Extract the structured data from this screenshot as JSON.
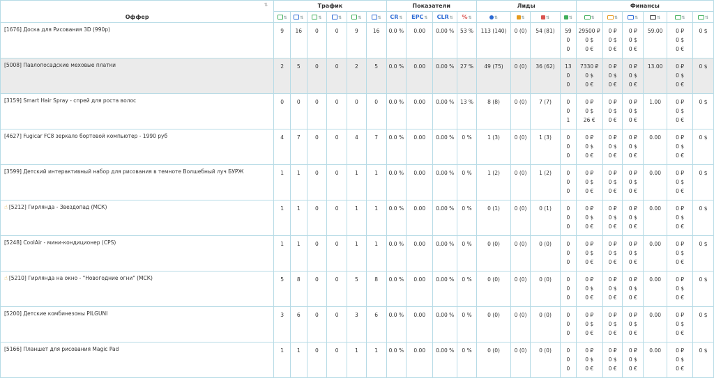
{
  "groups": {
    "offer": "Оффер",
    "traffic": "Трафик",
    "indicators": "Показатели",
    "leads": "Лиды",
    "finance": "Финансы"
  },
  "columns": {
    "traffic": [
      {
        "icon": "cursor-green-icon",
        "color": "#3fae5a"
      },
      {
        "icon": "cursor-blue-icon",
        "color": "#2a6ad4"
      },
      {
        "icon": "copy-green-icon",
        "color": "#3fae5a"
      },
      {
        "icon": "copy-blue-icon",
        "color": "#2a6ad4"
      },
      {
        "icon": "window-green-icon",
        "color": "#3fae5a"
      },
      {
        "icon": "window-blue-icon",
        "color": "#2a6ad4"
      }
    ],
    "indicators": [
      {
        "label": "CR",
        "color": "#2a6ad4"
      },
      {
        "label": "EPC",
        "color": "#2a6ad4"
      },
      {
        "label": "CLR",
        "color": "#2a6ad4"
      },
      {
        "label": "%",
        "color": "#d9534f"
      }
    ],
    "leads": [
      {
        "icon": "dot-blue-icon",
        "color": "#2a6ad4"
      },
      {
        "icon": "refresh-orange-icon",
        "color": "#e59a1c"
      },
      {
        "icon": "thumbs-down-red-icon",
        "color": "#d9534f"
      },
      {
        "icon": "thumbs-up-green-icon",
        "color": "#3fae5a"
      }
    ],
    "finance": [
      {
        "icon": "money-green-icon",
        "color": "#3fae5a"
      },
      {
        "icon": "money-orange-icon",
        "color": "#e59a1c"
      },
      {
        "icon": "money-blue-icon",
        "color": "#2a6ad4"
      },
      {
        "icon": "bracket-dark-icon",
        "color": "#333"
      },
      {
        "icon": "user-money-green-icon",
        "color": "#3fae5a"
      },
      {
        "icon": "plus-money-green-icon",
        "color": "#3fae5a"
      }
    ]
  },
  "rows": [
    {
      "hand": false,
      "shaded": false,
      "name": "[1676] Доска для Рисования 3D (990р)",
      "traffic": [
        "9",
        "16",
        "0",
        "0",
        "9",
        "16"
      ],
      "cr": "0.0 %",
      "epc": "0.00",
      "clr": "0.00 %",
      "pct": "53 %",
      "lead1": "113 (140)",
      "lead2": "0 (0)",
      "lead3": "54 (81)",
      "lead4": [
        "59",
        "0",
        "0"
      ],
      "fin1": [
        "29500 ₽",
        "0 $",
        "0 €"
      ],
      "fin2": [
        "0 ₽",
        "0 $",
        "0 €"
      ],
      "fin3": [
        "0 ₽",
        "0 $",
        "0 €"
      ],
      "fin4": "59.00",
      "fin5": [
        "0 ₽",
        "0 $",
        "0 €"
      ],
      "fin6": "0 $"
    },
    {
      "hand": false,
      "shaded": true,
      "name": "[5008] Павлопосадские меховые платки",
      "traffic": [
        "2",
        "5",
        "0",
        "0",
        "2",
        "5"
      ],
      "cr": "0.0 %",
      "epc": "0.00",
      "clr": "0.00 %",
      "pct": "27 %",
      "lead1": "49 (75)",
      "lead2": "0 (0)",
      "lead3": "36 (62)",
      "lead4": [
        "13",
        "0",
        "0"
      ],
      "fin1": [
        "7330 ₽",
        "0 $",
        "0 €"
      ],
      "fin2": [
        "0 ₽",
        "0 $",
        "0 €"
      ],
      "fin3": [
        "0 ₽",
        "0 $",
        "0 €"
      ],
      "fin4": "13.00",
      "fin5": [
        "0 ₽",
        "0 $",
        "0 €"
      ],
      "fin6": "0 $"
    },
    {
      "hand": false,
      "shaded": false,
      "name": "[3159] Smart Hair Spray - спрей для роста волос",
      "traffic": [
        "0",
        "0",
        "0",
        "0",
        "0",
        "0"
      ],
      "cr": "0.0 %",
      "epc": "0.00",
      "clr": "0.00 %",
      "pct": "13 %",
      "lead1": "8 (8)",
      "lead2": "0 (0)",
      "lead3": "7 (7)",
      "lead4": [
        "0",
        "0",
        "1"
      ],
      "fin1": [
        "0 ₽",
        "0 $",
        "26 €"
      ],
      "fin2": [
        "0 ₽",
        "0 $",
        "0 €"
      ],
      "fin3": [
        "0 ₽",
        "0 $",
        "0 €"
      ],
      "fin4": "1.00",
      "fin5": [
        "0 ₽",
        "0 $",
        "0 €"
      ],
      "fin6": "0 $"
    },
    {
      "hand": false,
      "shaded": false,
      "name": "[4627] Fugicar FC8 зеркало бортовой компьютер - 1990 руб",
      "traffic": [
        "4",
        "7",
        "0",
        "0",
        "4",
        "7"
      ],
      "cr": "0.0 %",
      "epc": "0.00",
      "clr": "0.00 %",
      "pct": "0 %",
      "lead1": "1 (3)",
      "lead2": "0 (0)",
      "lead3": "1 (3)",
      "lead4": [
        "0",
        "0",
        "0"
      ],
      "fin1": [
        "0 ₽",
        "0 $",
        "0 €"
      ],
      "fin2": [
        "0 ₽",
        "0 $",
        "0 €"
      ],
      "fin3": [
        "0 ₽",
        "0 $",
        "0 €"
      ],
      "fin4": "0.00",
      "fin5": [
        "0 ₽",
        "0 $",
        "0 €"
      ],
      "fin6": "0 $"
    },
    {
      "hand": false,
      "shaded": false,
      "name": "[3599] Детский интерактивный набор для рисования в темноте Волшебный луч БУРЖ",
      "traffic": [
        "1",
        "1",
        "0",
        "0",
        "1",
        "1"
      ],
      "cr": "0.0 %",
      "epc": "0.00",
      "clr": "0.00 %",
      "pct": "0 %",
      "lead1": "1 (2)",
      "lead2": "0 (0)",
      "lead3": "1 (2)",
      "lead4": [
        "0",
        "0",
        "0"
      ],
      "fin1": [
        "0 ₽",
        "0 $",
        "0 €"
      ],
      "fin2": [
        "0 ₽",
        "0 $",
        "0 €"
      ],
      "fin3": [
        "0 ₽",
        "0 $",
        "0 €"
      ],
      "fin4": "0.00",
      "fin5": [
        "0 ₽",
        "0 $",
        "0 €"
      ],
      "fin6": "0 $"
    },
    {
      "hand": true,
      "shaded": false,
      "name": "[5212] Гирлянда - Звездопад (МСК)",
      "traffic": [
        "1",
        "1",
        "0",
        "0",
        "1",
        "1"
      ],
      "cr": "0.0 %",
      "epc": "0.00",
      "clr": "0.00 %",
      "pct": "0 %",
      "lead1": "0 (1)",
      "lead2": "0 (0)",
      "lead3": "0 (1)",
      "lead4": [
        "0",
        "0",
        "0"
      ],
      "fin1": [
        "0 ₽",
        "0 $",
        "0 €"
      ],
      "fin2": [
        "0 ₽",
        "0 $",
        "0 €"
      ],
      "fin3": [
        "0 ₽",
        "0 $",
        "0 €"
      ],
      "fin4": "0.00",
      "fin5": [
        "0 ₽",
        "0 $",
        "0 €"
      ],
      "fin6": "0 $"
    },
    {
      "hand": false,
      "shaded": false,
      "name": "[5248] CoolAir - мини-кондиционер (CPS)",
      "traffic": [
        "1",
        "1",
        "0",
        "0",
        "1",
        "1"
      ],
      "cr": "0.0 %",
      "epc": "0.00",
      "clr": "0.00 %",
      "pct": "0 %",
      "lead1": "0 (0)",
      "lead2": "0 (0)",
      "lead3": "0 (0)",
      "lead4": [
        "0",
        "0",
        "0"
      ],
      "fin1": [
        "0 ₽",
        "0 $",
        "0 €"
      ],
      "fin2": [
        "0 ₽",
        "0 $",
        "0 €"
      ],
      "fin3": [
        "0 ₽",
        "0 $",
        "0 €"
      ],
      "fin4": "0.00",
      "fin5": [
        "0 ₽",
        "0 $",
        "0 €"
      ],
      "fin6": "0 $"
    },
    {
      "hand": true,
      "shaded": false,
      "name": "[5210] Гирлянда на окно - \"Новогодние огни\" (МСК)",
      "traffic": [
        "5",
        "8",
        "0",
        "0",
        "5",
        "8"
      ],
      "cr": "0.0 %",
      "epc": "0.00",
      "clr": "0.00 %",
      "pct": "0 %",
      "lead1": "0 (0)",
      "lead2": "0 (0)",
      "lead3": "0 (0)",
      "lead4": [
        "0",
        "0",
        "0"
      ],
      "fin1": [
        "0 ₽",
        "0 $",
        "0 €"
      ],
      "fin2": [
        "0 ₽",
        "0 $",
        "0 €"
      ],
      "fin3": [
        "0 ₽",
        "0 $",
        "0 €"
      ],
      "fin4": "0.00",
      "fin5": [
        "0 ₽",
        "0 $",
        "0 €"
      ],
      "fin6": "0 $"
    },
    {
      "hand": false,
      "shaded": false,
      "name": "[5200] Детские комбинезоны PILGUNI",
      "traffic": [
        "3",
        "6",
        "0",
        "0",
        "3",
        "6"
      ],
      "cr": "0.0 %",
      "epc": "0.00",
      "clr": "0.00 %",
      "pct": "0 %",
      "lead1": "0 (0)",
      "lead2": "0 (0)",
      "lead3": "0 (0)",
      "lead4": [
        "0",
        "0",
        "0"
      ],
      "fin1": [
        "0 ₽",
        "0 $",
        "0 €"
      ],
      "fin2": [
        "0 ₽",
        "0 $",
        "0 €"
      ],
      "fin3": [
        "0 ₽",
        "0 $",
        "0 €"
      ],
      "fin4": "0.00",
      "fin5": [
        "0 ₽",
        "0 $",
        "0 €"
      ],
      "fin6": "0 $"
    },
    {
      "hand": false,
      "shaded": false,
      "name": "[5166] Планшет для рисования Magic Pad",
      "traffic": [
        "1",
        "1",
        "0",
        "0",
        "1",
        "1"
      ],
      "cr": "0.0 %",
      "epc": "0.00",
      "clr": "0.00 %",
      "pct": "0 %",
      "lead1": "0 (0)",
      "lead2": "0 (0)",
      "lead3": "0 (0)",
      "lead4": [
        "0",
        "0",
        "0"
      ],
      "fin1": [
        "0 ₽",
        "0 $",
        "0 €"
      ],
      "fin2": [
        "0 ₽",
        "0 $",
        "0 €"
      ],
      "fin3": [
        "0 ₽",
        "0 $",
        "0 €"
      ],
      "fin4": "0.00",
      "fin5": [
        "0 ₽",
        "0 $",
        "0 €"
      ],
      "fin6": "0 $"
    }
  ]
}
